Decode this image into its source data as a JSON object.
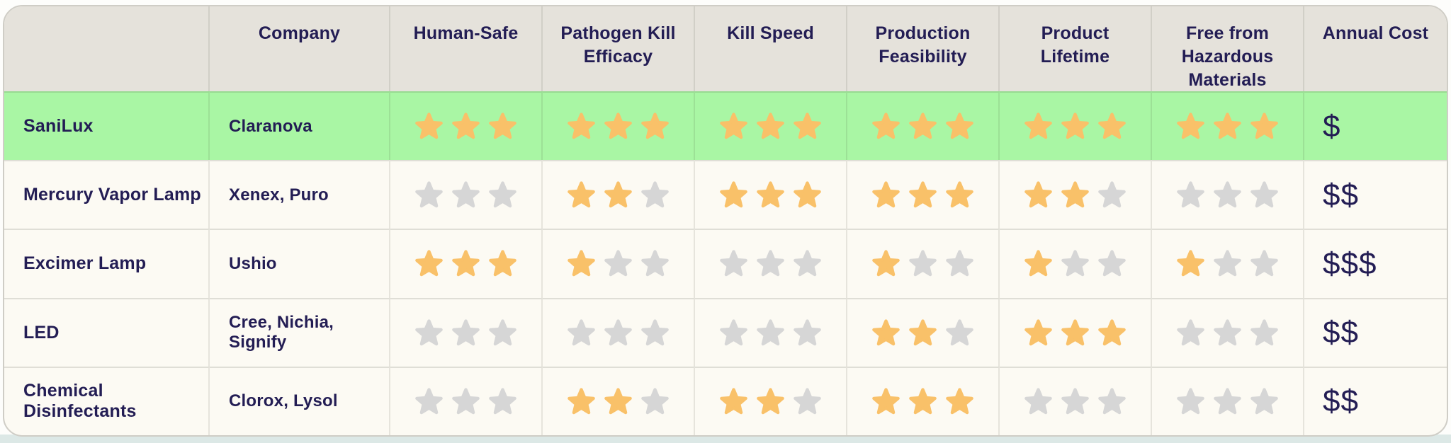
{
  "colors": {
    "header_bg": "#e5e2db",
    "highlight_row_bg": "#a9f6a4",
    "row_bg": "#fcfaf3",
    "text_navy": "#231d54",
    "star_filled": "#f9c169",
    "star_empty": "#d6d6d6",
    "page_strip": "#dce8e6"
  },
  "chart_data": {
    "type": "table",
    "title": "",
    "rating_max": 3,
    "columns": [
      "",
      "Company",
      "Human-Safe",
      "Pathogen Kill Efficacy",
      "Kill Speed",
      "Production Feasibility",
      "Product Lifetime",
      "Free from Hazardous Materials",
      "Annual Cost"
    ],
    "rating_columns": [
      "Human-Safe",
      "Pathogen Kill Efficacy",
      "Kill Speed",
      "Production Feasibility",
      "Product Lifetime",
      "Free from Hazardous Materials"
    ],
    "rows": [
      {
        "name": "SaniLux",
        "company": "Claranova",
        "highlighted": true,
        "ratings": [
          3,
          3,
          3,
          3,
          3,
          3
        ],
        "annual_cost": "$"
      },
      {
        "name": "Mercury Vapor Lamp",
        "company": "Xenex, Puro",
        "highlighted": false,
        "ratings": [
          0,
          2,
          3,
          3,
          2,
          0
        ],
        "annual_cost": "$$"
      },
      {
        "name": "Excimer Lamp",
        "company": "Ushio",
        "highlighted": false,
        "ratings": [
          3,
          1,
          0,
          1,
          1,
          1
        ],
        "annual_cost": "$$$"
      },
      {
        "name": "LED",
        "company": "Cree, Nichia, Signify",
        "highlighted": false,
        "ratings": [
          0,
          0,
          0,
          2,
          3,
          0
        ],
        "annual_cost": "$$"
      },
      {
        "name": "Chemical Disinfectants",
        "company": "Clorox, Lysol",
        "highlighted": false,
        "ratings": [
          0,
          2,
          2,
          3,
          0,
          0
        ],
        "annual_cost": "$$"
      }
    ]
  }
}
